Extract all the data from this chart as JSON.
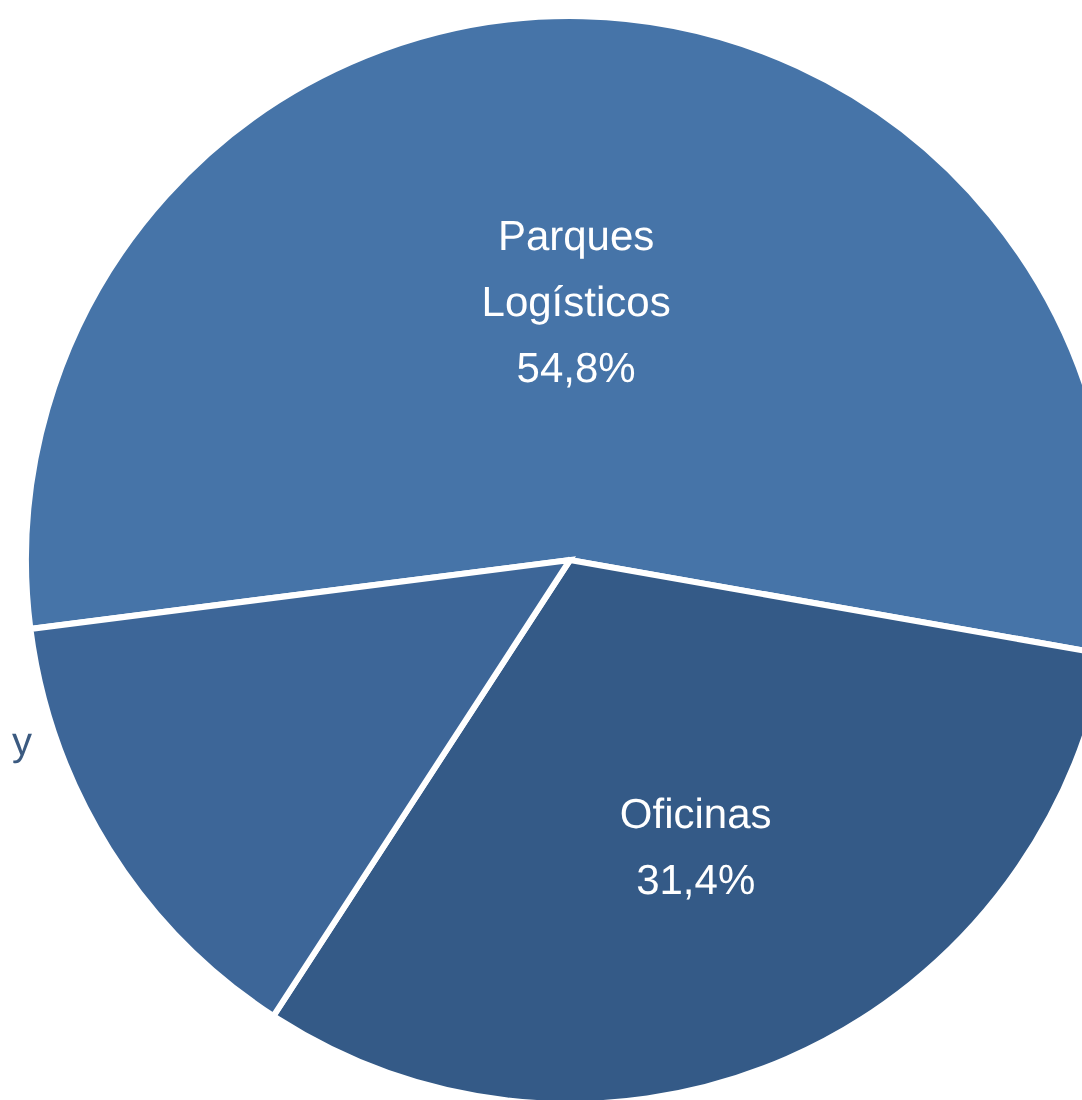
{
  "chart_data": {
    "type": "pie",
    "categories": [
      "Parques Logísticos",
      "Oficinas",
      "y"
    ],
    "values": [
      54.8,
      31.4,
      13.8
    ],
    "colors": [
      "#4674a8",
      "#345a87",
      "#3d6698"
    ],
    "value_labels": [
      "54,8%",
      "31,4%",
      null
    ]
  }
}
